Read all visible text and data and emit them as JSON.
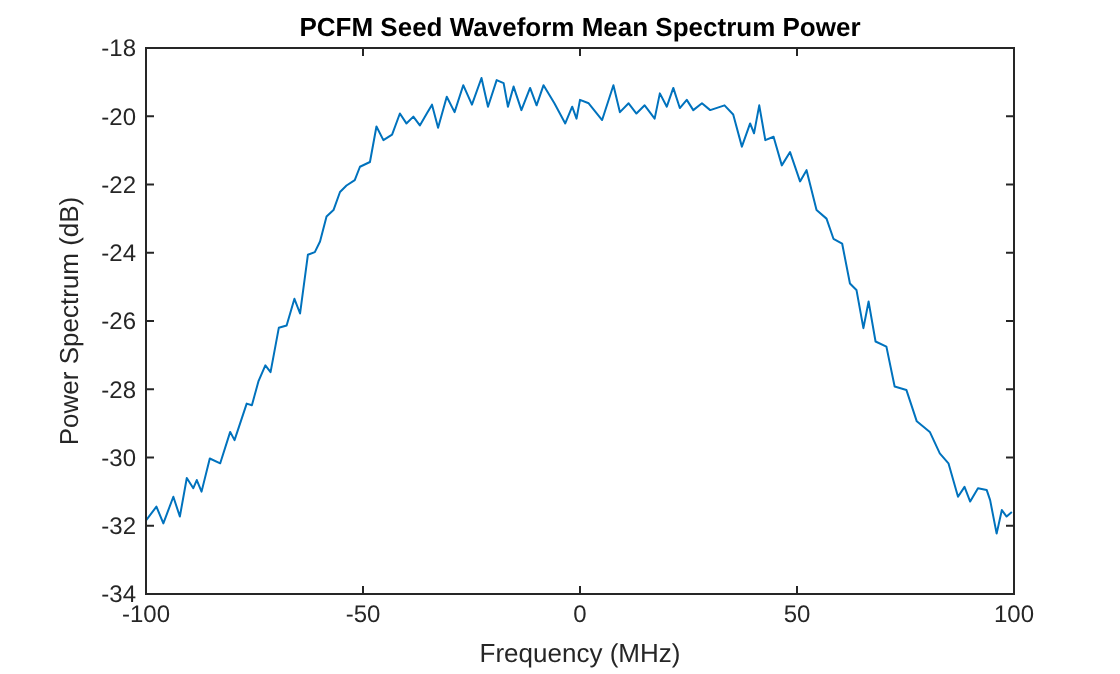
{
  "chart_data": {
    "type": "line",
    "title": "PCFM Seed Waveform Mean Spectrum Power",
    "xlabel": "Frequency (MHz)",
    "ylabel": "Power Spectrum (dB)",
    "xlim": [
      -100,
      100
    ],
    "ylim": [
      -34,
      -18
    ],
    "xticks": [
      -100,
      -50,
      0,
      50,
      100
    ],
    "yticks": [
      -34,
      -32,
      -30,
      -28,
      -26,
      -24,
      -22,
      -20,
      -18
    ],
    "marker": "none",
    "line_style": "solid",
    "series": [
      {
        "color": "#0072bd",
        "x": [
          -99.9,
          -97.6,
          -96,
          -93.7,
          -92.2,
          -90.6,
          -89.1,
          -88.3,
          -87.2,
          -85.3,
          -82.9,
          -80.6,
          -79.6,
          -76.8,
          -75.6,
          -74.1,
          -72.5,
          -71.3,
          -69.4,
          -67.6,
          -65.8,
          -64.5,
          -62.7,
          -61.1,
          -59.9,
          -58.4,
          -56.8,
          -55.3,
          -53.8,
          -51.9,
          -50.7,
          -48.4,
          -46.9,
          -45.3,
          -43.3,
          -41.5,
          -40,
          -38.4,
          -36.9,
          -35.3,
          -34.1,
          -32.7,
          -30.7,
          -28.9,
          -26.9,
          -24.9,
          -22.7,
          -21.2,
          -19.2,
          -17.6,
          -16.6,
          -15.3,
          -13.5,
          -11.5,
          -10,
          -8.4,
          -5.9,
          -3.4,
          -1.8,
          -0.8,
          0,
          2,
          5.1,
          7.7,
          9.2,
          11.2,
          13,
          14.9,
          17.2,
          18.4,
          20,
          21.5,
          23,
          24.6,
          26.1,
          28.1,
          30,
          33.3,
          35.3,
          37.3,
          39.2,
          40.1,
          41.3,
          42.7,
          44.6,
          46.5,
          48.4,
          50.7,
          52.2,
          54.5,
          56.8,
          58.4,
          60.4,
          62.2,
          63.7,
          65.3,
          66.5,
          68.1,
          70.6,
          72.5,
          75.2,
          77.6,
          80.6,
          82.9,
          84.9,
          87.1,
          88.6,
          89.9,
          91.7,
          93.7,
          94.5,
          96,
          97.2,
          98.3,
          99.5
        ],
        "values": [
          -31.83,
          -31.44,
          -31.93,
          -31.15,
          -31.73,
          -30.6,
          -30.9,
          -30.66,
          -31,
          -30.03,
          -30.17,
          -29.25,
          -29.49,
          -28.42,
          -28.47,
          -27.77,
          -27.3,
          -27.5,
          -26.2,
          -26.13,
          -25.35,
          -25.78,
          -24.06,
          -23.98,
          -23.67,
          -22.94,
          -22.75,
          -22.22,
          -22.03,
          -21.87,
          -21.48,
          -21.34,
          -20.3,
          -20.7,
          -20.54,
          -19.92,
          -20.21,
          -20.01,
          -20.27,
          -19.92,
          -19.66,
          -20.34,
          -19.43,
          -19.88,
          -19.09,
          -19.66,
          -18.88,
          -19.72,
          -18.94,
          -19.03,
          -19.72,
          -19.13,
          -19.82,
          -19.17,
          -19.68,
          -19.09,
          -19.62,
          -20.21,
          -19.72,
          -20.07,
          -19.52,
          -19.62,
          -20.11,
          -19.09,
          -19.88,
          -19.62,
          -19.92,
          -19.68,
          -20.07,
          -19.33,
          -19.72,
          -19.17,
          -19.76,
          -19.52,
          -19.82,
          -19.62,
          -19.82,
          -19.68,
          -19.95,
          -20.89,
          -20.21,
          -20.5,
          -19.68,
          -20.7,
          -20.6,
          -21.44,
          -21.05,
          -21.91,
          -21.58,
          -22.75,
          -23,
          -23.59,
          -23.73,
          -24.9,
          -25.09,
          -26.21,
          -25.43,
          -26.6,
          -26.75,
          -27.92,
          -28.02,
          -28.94,
          -29.25,
          -29.88,
          -30.17,
          -31.15,
          -30.86,
          -31.29,
          -30.9,
          -30.95,
          -31.25,
          -32.23,
          -31.54,
          -31.73,
          -31.6
        ]
      }
    ]
  }
}
